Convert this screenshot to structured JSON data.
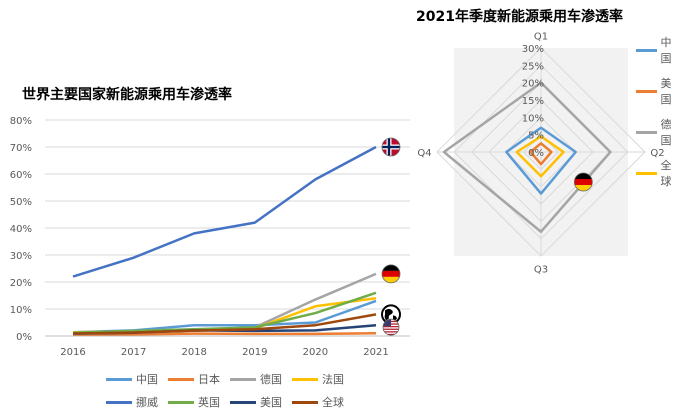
{
  "line_chart_title": "世界主要国家新能源乘用车渗透率",
  "radar_chart_title": "2021年季度新能源乘用车渗透率",
  "chart_data": [
    {
      "type": "line",
      "title": "世界主要国家新能源乘用车渗透率",
      "x": [
        "2016",
        "2017",
        "2018",
        "2019",
        "2020",
        "2021"
      ],
      "ylim": [
        0,
        80
      ],
      "yticks": [
        "0%",
        "10%",
        "20%",
        "30%",
        "40%",
        "50%",
        "60%",
        "70%",
        "80%"
      ],
      "grid": true,
      "legend_position": "bottom",
      "series": [
        {
          "name": "中国",
          "color": "#5b9bd5",
          "values": [
            1.4,
            2.1,
            4.0,
            4.0,
            5.0,
            13.0
          ]
        },
        {
          "name": "日本",
          "color": "#ed7d31",
          "values": [
            0.5,
            0.6,
            0.9,
            0.8,
            0.8,
            1.0
          ]
        },
        {
          "name": "德国",
          "color": "#a5a5a5",
          "values": [
            0.7,
            1.3,
            2.0,
            3.2,
            13.5,
            23.0
          ]
        },
        {
          "name": "法国",
          "color": "#ffc000",
          "values": [
            1.4,
            1.7,
            2.0,
            2.8,
            11.0,
            14.0
          ]
        },
        {
          "name": "挪威",
          "color": "#4472c4",
          "values": [
            22.0,
            29.0,
            38.0,
            42.0,
            58.0,
            70.0
          ]
        },
        {
          "name": "英国",
          "color": "#70ad47",
          "values": [
            1.2,
            1.9,
            2.5,
            3.2,
            8.5,
            16.0
          ]
        },
        {
          "name": "美国",
          "color": "#264478",
          "values": [
            0.9,
            1.2,
            2.1,
            1.9,
            2.1,
            4.0
          ]
        },
        {
          "name": "全球",
          "color": "#9e480e",
          "values": [
            0.9,
            1.3,
            2.0,
            2.5,
            4.0,
            8.0
          ]
        }
      ],
      "marker_icons": [
        {
          "series": "挪威",
          "icon": "norway-flag-icon"
        },
        {
          "series": "德国",
          "icon": "germany-flag-icon"
        },
        {
          "series": "全球",
          "icon": "globe-icon"
        },
        {
          "series": "美国",
          "icon": "usa-flag-icon"
        }
      ]
    },
    {
      "type": "radar",
      "title": "2021年季度新能源乘用车渗透率",
      "axes": [
        "Q1",
        "Q2",
        "Q3",
        "Q4"
      ],
      "rlim": [
        0,
        30
      ],
      "rticks": [
        "0%",
        "5%",
        "10%",
        "15%",
        "20%",
        "25%",
        "30%"
      ],
      "grid": true,
      "legend_position": "right",
      "series": [
        {
          "name": "中国",
          "color": "#5b9bd5",
          "values": [
            7.0,
            10.0,
            12.0,
            10.0
          ]
        },
        {
          "name": "美国",
          "color": "#ed7d31",
          "values": [
            2.5,
            3.0,
            3.5,
            3.0
          ]
        },
        {
          "name": "德国",
          "color": "#a5a5a5",
          "values": [
            20.0,
            20.0,
            23.0,
            28.0
          ]
        },
        {
          "name": "全球",
          "color": "#ffc000",
          "values": [
            4.5,
            6.5,
            7.0,
            7.0
          ]
        }
      ],
      "marker_icons": [
        {
          "series": "德国",
          "icon": "germany-flag-icon"
        }
      ]
    }
  ]
}
